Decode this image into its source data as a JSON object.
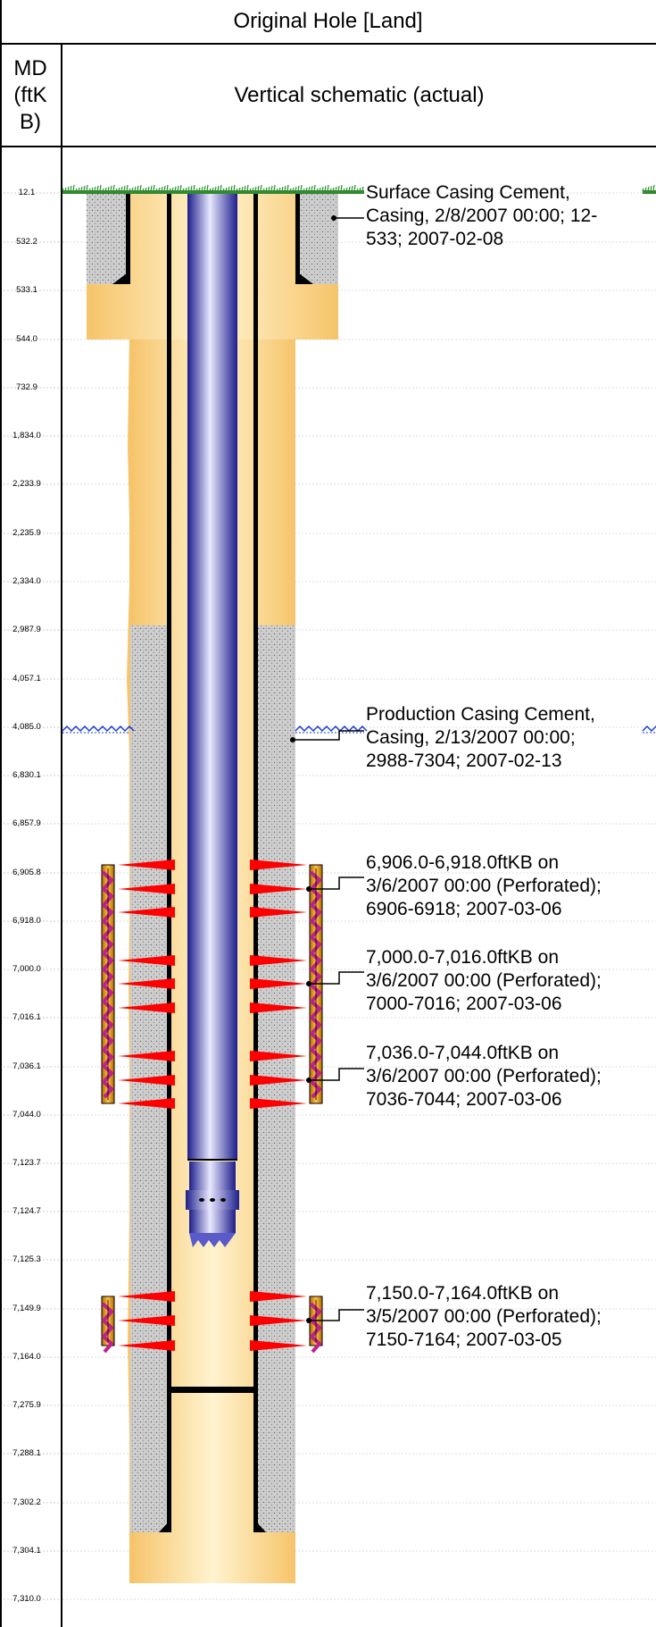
{
  "header": {
    "title": "Original Hole [Land]",
    "md_label": "MD\n(ftK\nB)",
    "md_lines": [
      "MD",
      "(ftK",
      "B)"
    ],
    "schematic_label": "Vertical schematic (actual)"
  },
  "depth_labels": [
    "12.1",
    "532.2",
    "533.1",
    "544.0",
    "732.9",
    "1,834.0",
    "2,233.9",
    "2,235.9",
    "2,334.0",
    "2,987.9",
    "4,057.1",
    "4,085.0",
    "6,830.1",
    "6,857.9",
    "6,905.8",
    "6,918.0",
    "7,000.0",
    "7,016.1",
    "7,036.1",
    "7,044.0",
    "7,123.7",
    "7,124.7",
    "7,125.3",
    "7,149.9",
    "7,164.0",
    "7,275.9",
    "7,288.1",
    "7,302.2",
    "7,304.1",
    "7,310.0"
  ],
  "annotations": [
    {
      "lines": [
        "Surface Casing Cement,",
        "Casing, 2/8/2007 00:00; 12-",
        "533; 2007-02-08"
      ]
    },
    {
      "lines": [
        "Production Casing Cement,",
        "Casing, 2/13/2007 00:00;",
        "2988-7304; 2007-02-13"
      ]
    },
    {
      "lines": [
        "6,906.0-6,918.0ftKB on",
        "3/6/2007 00:00 (Perforated);",
        "6906-6918; 2007-03-06"
      ]
    },
    {
      "lines": [
        "7,000.0-7,016.0ftKB on",
        "3/6/2007 00:00 (Perforated);",
        "7000-7016; 2007-03-06"
      ]
    },
    {
      "lines": [
        "7,036.0-7,044.0ftKB on",
        "3/6/2007 00:00 (Perforated);",
        "7036-7044; 2007-03-06"
      ]
    },
    {
      "lines": [
        "7,150.0-7,164.0ftKB on",
        "3/5/2007 00:00 (Perforated);",
        "7150-7164; 2007-03-05"
      ]
    }
  ],
  "colors": {
    "hole": "#fbd38a",
    "hole_light": "#fff2c8",
    "cement": "#c9c9c9",
    "tubing": "#3a3ab8",
    "perf_red": "#ff0000",
    "perf_body": "#d4901a",
    "perf_magenta": "#c0208a",
    "grass": "#2e8b2e",
    "water": "#1a3ad8"
  }
}
